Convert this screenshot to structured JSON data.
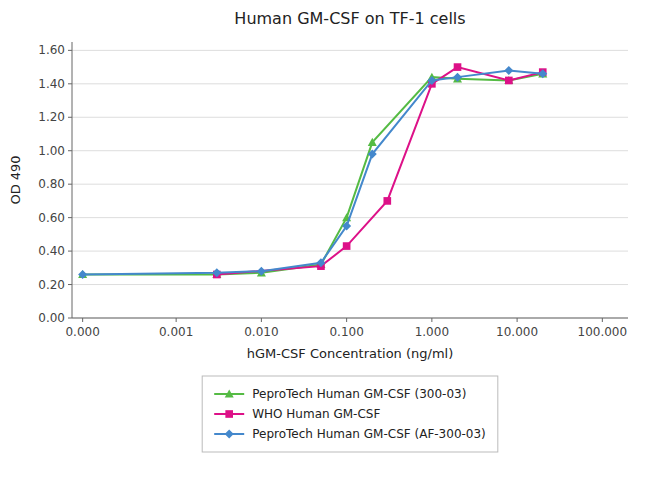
{
  "chart_data": {
    "type": "line",
    "title": "Human GM-CSF on TF-1 cells",
    "x_label": "hGM-CSF Concentration (ng/ml)",
    "y_label": "OD 490",
    "log": "x",
    "grid": "y",
    "legend": "bottom",
    "xlim": [
      6e-05,
      200
    ],
    "xticks": [
      {
        "value": 8e-05,
        "label": "0.000"
      },
      0.001,
      {
        "value": 0.01,
        "label": "0.010"
      },
      {
        "value": 0.1,
        "label": "0.100"
      },
      {
        "value": 1,
        "label": "1.000"
      },
      {
        "value": 10,
        "label": "10.000"
      },
      {
        "value": 100,
        "label": "100.000"
      }
    ],
    "ylim": [
      0.0,
      1.65
    ],
    "yticks": [
      {
        "value": 0.0,
        "label": "0.00"
      },
      {
        "value": 0.2,
        "label": "0.20"
      },
      {
        "value": 0.4,
        "label": "0.40"
      },
      {
        "value": 0.6,
        "label": "0.60"
      },
      {
        "value": 0.8,
        "label": "0.80"
      },
      {
        "value": 1.0,
        "label": "1.00"
      },
      {
        "value": 1.2,
        "label": "1.20"
      },
      {
        "value": 1.4,
        "label": "1.40"
      },
      {
        "value": 1.6,
        "label": "1.60"
      }
    ],
    "series": [
      {
        "name": "PeproTech Human GM-CSF (300-03)",
        "color": "#55bb44",
        "marker": "triangle",
        "x": [
          8e-05,
          0.003,
          0.01,
          0.05,
          0.1,
          0.2,
          1.0,
          2.0,
          8.0,
          20.0
        ],
        "values": [
          0.26,
          0.26,
          0.27,
          0.32,
          0.6,
          1.05,
          1.44,
          1.43,
          1.42,
          1.46
        ]
      },
      {
        "name": "WHO Human GM-CSF",
        "color": "#dd1188",
        "marker": "square",
        "x": [
          0.003,
          0.05,
          0.1,
          0.3,
          1.0,
          2.0,
          8.0,
          20.0
        ],
        "values": [
          0.26,
          0.31,
          0.43,
          0.7,
          1.4,
          1.5,
          1.42,
          1.47
        ]
      },
      {
        "name": "PeproTech Human GM-CSF (AF-300-03)",
        "color": "#4488cc",
        "marker": "diamond",
        "x": [
          8e-05,
          0.003,
          0.01,
          0.05,
          0.1,
          0.2,
          1.0,
          2.0,
          8.0,
          20.0
        ],
        "values": [
          0.26,
          0.27,
          0.28,
          0.33,
          0.55,
          0.98,
          1.42,
          1.44,
          1.48,
          1.46
        ]
      }
    ]
  }
}
